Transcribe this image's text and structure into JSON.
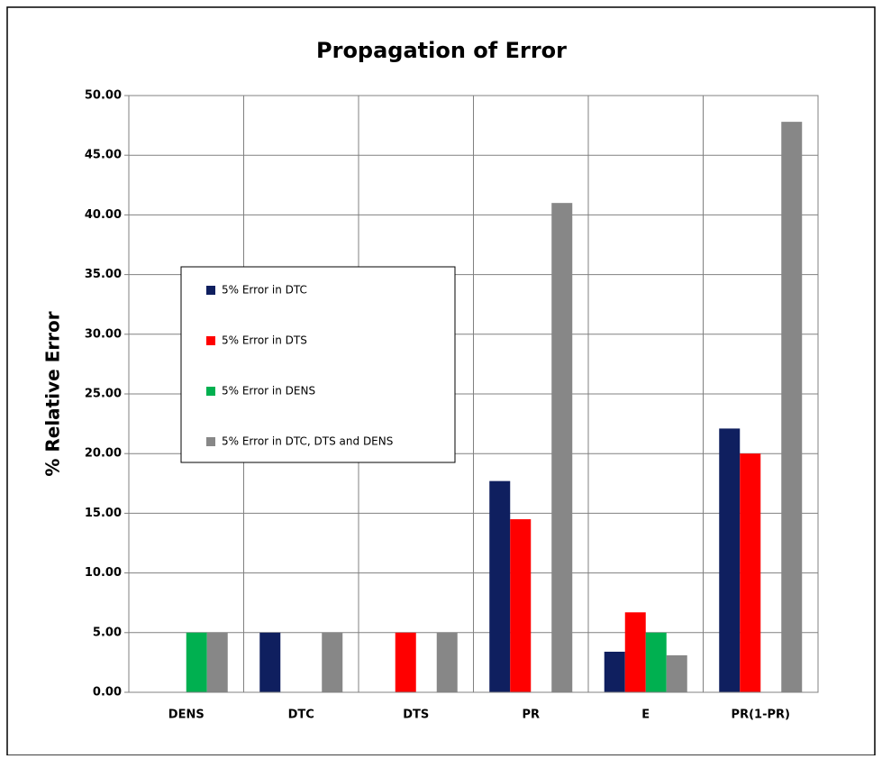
{
  "chart_data": {
    "type": "bar",
    "title": "Propagation of Error",
    "y_label": "% Relative Error",
    "categories": [
      "DENS",
      "DTC",
      "DTS",
      "PR",
      "E",
      "PR(1-PR)"
    ],
    "series": [
      {
        "name": "5% Error in DTC",
        "color": "#0f1f5f",
        "values": [
          0,
          5,
          0,
          17.7,
          3.4,
          22.1
        ]
      },
      {
        "name": "5% Error in DTS",
        "color": "#ff0000",
        "values": [
          0,
          0,
          5,
          14.5,
          6.7,
          20.0
        ]
      },
      {
        "name": "5% Error in DENS",
        "color": "#00b050",
        "values": [
          5,
          0,
          0,
          0,
          5.0,
          0
        ]
      },
      {
        "name": "5% Error in DTC, DTS and DENS",
        "color": "#878787",
        "values": [
          5,
          5,
          5,
          41.0,
          3.1,
          47.8
        ]
      }
    ],
    "ylim": [
      0,
      50
    ],
    "yticks": [
      {
        "value": 0,
        "label": "0.00"
      },
      {
        "value": 5,
        "label": "5.00"
      },
      {
        "value": 10,
        "label": "10.00"
      },
      {
        "value": 15,
        "label": "15.00"
      },
      {
        "value": 20,
        "label": "20.00"
      },
      {
        "value": 25,
        "label": "25.00"
      },
      {
        "value": 30,
        "label": "30.00"
      },
      {
        "value": 35,
        "label": "35.00"
      },
      {
        "value": 40,
        "label": "40.00"
      },
      {
        "value": 45,
        "label": "45.00"
      },
      {
        "value": 50,
        "label": "50.00"
      }
    ],
    "grid": true
  }
}
